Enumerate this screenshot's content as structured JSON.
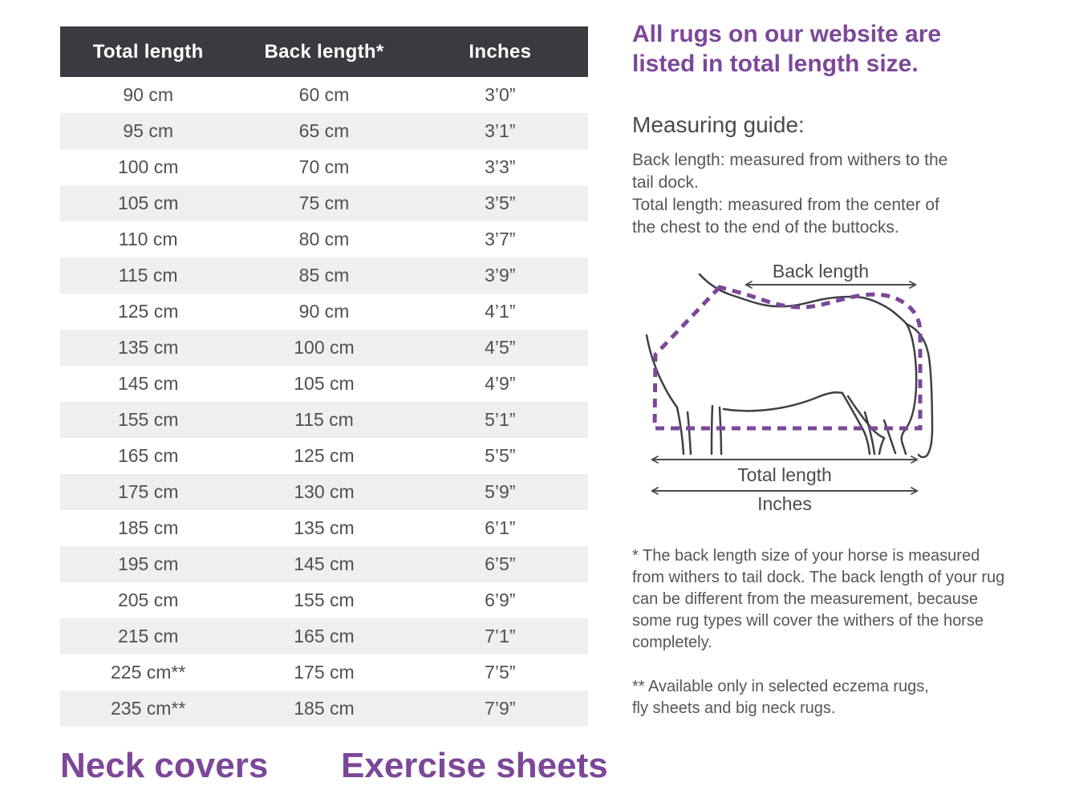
{
  "table": {
    "headers": [
      "Total length",
      "Back length*",
      "Inches"
    ],
    "rows": [
      [
        "90 cm",
        "60 cm",
        "3’0”"
      ],
      [
        "95 cm",
        "65 cm",
        "3’1”"
      ],
      [
        "100 cm",
        "70 cm",
        "3’3”"
      ],
      [
        "105 cm",
        "75 cm",
        "3’5”"
      ],
      [
        "110 cm",
        "80 cm",
        "3’7”"
      ],
      [
        "115 cm",
        "85 cm",
        "3’9”"
      ],
      [
        "125 cm",
        "90 cm",
        "4’1”"
      ],
      [
        "135 cm",
        "100 cm",
        "4’5”"
      ],
      [
        "145 cm",
        "105 cm",
        "4’9”"
      ],
      [
        "155 cm",
        "115 cm",
        "5’1”"
      ],
      [
        "165 cm",
        "125 cm",
        "5’5”"
      ],
      [
        "175 cm",
        "130 cm",
        "5’9”"
      ],
      [
        "185 cm",
        "135 cm",
        "6’1”"
      ],
      [
        "195 cm",
        "145 cm",
        "6’5”"
      ],
      [
        "205 cm",
        "155 cm",
        "6’9”"
      ],
      [
        "215 cm",
        "165 cm",
        "7’1”"
      ],
      [
        "225 cm**",
        "175 cm",
        "7’5”"
      ],
      [
        "235 cm**",
        "185 cm",
        "7’9”"
      ]
    ]
  },
  "sidebar": {
    "title": "All rugs on our website are\nlisted in total length size.",
    "guide_heading": "Measuring guide:",
    "guide_text": "Back length: measured from withers to the\ntail dock.\nTotal length: measured from the center of\nthe chest to the end of the buttocks.",
    "diagram": {
      "back_length_label": "Back length",
      "total_length_label": "Total length",
      "inches_label": "Inches"
    },
    "footnote_single": "* The back length size of your horse is measured\nfrom withers to tail dock. The back length of your rug\ncan be different from the measurement, because\nsome rug types will cover the withers of the horse\ncompletely.",
    "footnote_double": "** Available only in selected eczema rugs,\nfly sheets and big neck rugs."
  },
  "bottom": {
    "neck_heading": "Neck covers",
    "exercise_heading": "Exercise sheets"
  },
  "colors": {
    "accent_purple": "#7c4799",
    "header_dark": "#3a3a40",
    "row_stripe": "#efefef",
    "line_gray": "#4a4a50"
  }
}
